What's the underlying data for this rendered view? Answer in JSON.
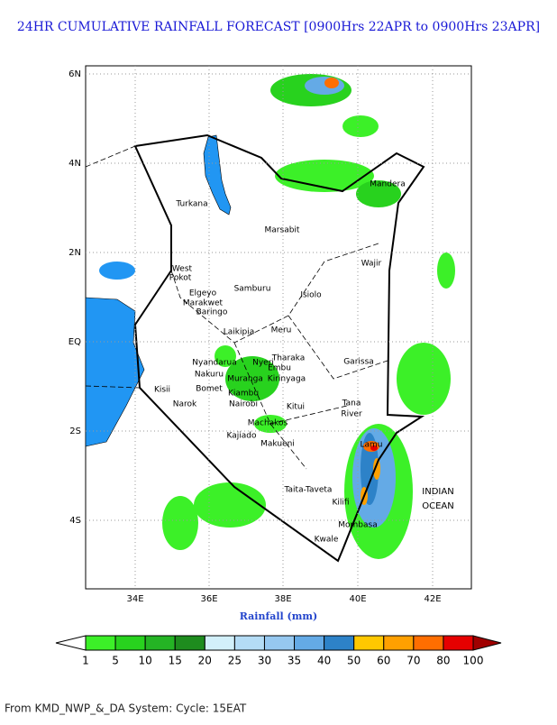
{
  "title": "24HR CUMULATIVE RAINFALL FORECAST [0900Hrs 22APR to 0900Hrs 23APR]",
  "map": {
    "lat_labels": [
      "6N",
      "4N",
      "2N",
      "EQ",
      "2S",
      "4S"
    ],
    "lon_labels": [
      "34E",
      "36E",
      "38E",
      "40E",
      "42E"
    ],
    "places": [
      "Turkana",
      "Marsabit",
      "Mandera",
      "Wajir",
      "West",
      "Pokot",
      "Samburu",
      "Isiolo",
      "Elgeyo",
      "Marakwet",
      "Baringo",
      "Laikipia",
      "Meru",
      "Tharaka",
      "Nyeri",
      "Embu",
      "Kirinyaga",
      "Nyandarua",
      "Nakuru",
      "Muranga",
      "Bomet",
      "Narok",
      "Kisii",
      "Kiambu",
      "Nairobi",
      "Kitui",
      "Garissa",
      "Tana",
      "River",
      "Machakos",
      "Kajiado",
      "Makueni",
      "Lamu",
      "Taita-Taveta",
      "Kilifi",
      "Mombasa",
      "Kwale"
    ],
    "ocean_label": [
      "INDIAN",
      "OCEAN"
    ]
  },
  "legend": {
    "title": "Rainfall (mm)",
    "levels": [
      1,
      5,
      10,
      15,
      20,
      25,
      30,
      35,
      40,
      50,
      60,
      70,
      80,
      100
    ],
    "colors": [
      "#ffffff",
      "#3cf028",
      "#28d21e",
      "#24b424",
      "#1e8c1e",
      "#d2f0fa",
      "#b4dcf5",
      "#96c8f0",
      "#64aae6",
      "#2d82c8",
      "#ffc800",
      "#ffa000",
      "#ff6e00",
      "#e60000",
      "#a00000"
    ]
  },
  "footer": "From KMD_NWP_&_DA System: Cycle: 15EAT"
}
